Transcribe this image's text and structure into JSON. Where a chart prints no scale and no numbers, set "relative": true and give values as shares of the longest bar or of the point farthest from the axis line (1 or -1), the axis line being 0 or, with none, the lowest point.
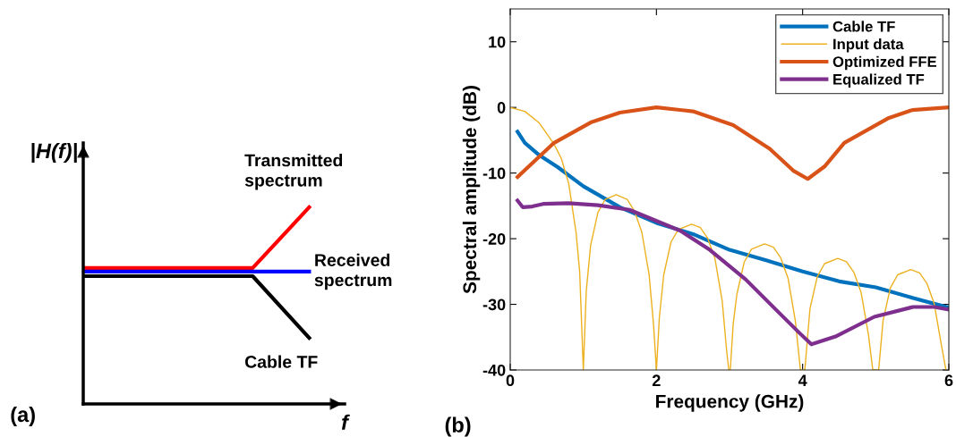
{
  "chart_data": [
    {
      "type": "line",
      "relative": true,
      "xlabel": "f",
      "ylabel": "|H(f)|",
      "annotations": [
        "(a)"
      ],
      "grid": false,
      "legend": false,
      "categories": [
        null,
        null,
        null,
        null,
        null
      ],
      "series": [
        {
          "name": "Transmitted spectrum",
          "color": "#ff0000",
          "values": [
            0.691,
            0.691,
            0.691,
            0.691,
            1.0
          ]
        },
        {
          "name": "Received spectrum",
          "color": "#0000ff",
          "values": [
            0.673,
            0.673,
            0.673,
            0.673,
            0.673
          ]
        },
        {
          "name": "Cable TF",
          "color": "#000000",
          "values": [
            0.65,
            0.65,
            0.65,
            0.65,
            0.336
          ]
        }
      ]
    },
    {
      "type": "line",
      "xlabel": "Frequency (GHz)",
      "ylabel": "Spectral amplitude (dB)",
      "annotations": [
        "(b)"
      ],
      "grid": false,
      "legend": "top right",
      "xlim": [
        0,
        6
      ],
      "xticks": [
        0,
        2,
        4,
        6
      ],
      "ylim": [
        -40,
        15
      ],
      "yticks": [
        -40,
        -30,
        -20,
        -10,
        0,
        10
      ],
      "series": [
        {
          "name": "Cable TF",
          "color": "#0072bd",
          "x": [
            0.1,
            0.2,
            0.4,
            0.65,
            1.0,
            1.5,
            2.0,
            2.5,
            3.0,
            3.5,
            4.0,
            4.5,
            5.0,
            5.5,
            6.0
          ],
          "values": [
            -3.7,
            -5.4,
            -7.3,
            -9.1,
            -12.0,
            -15.2,
            -17.6,
            -19.3,
            -21.7,
            -23.3,
            -25.0,
            -26.5,
            -27.4,
            -29.0,
            -30.5
          ]
        },
        {
          "name": "Input data",
          "color": "#edb120",
          "x": [
            0.0,
            0.2,
            0.4,
            0.6,
            0.7,
            0.8,
            0.9,
            0.95,
            1.0,
            1.04,
            1.1,
            1.2,
            1.3,
            1.45,
            1.6,
            1.7,
            1.8,
            1.9,
            1.96,
            2.0,
            2.04,
            2.1,
            2.2,
            2.3,
            2.48,
            2.6,
            2.7,
            2.8,
            2.9,
            2.96,
            2.99,
            3.01,
            3.05,
            3.1,
            3.2,
            3.3,
            3.48,
            3.6,
            3.7,
            3.8,
            3.9,
            3.97,
            4.03,
            4.1,
            4.2,
            4.3,
            4.48,
            4.6,
            4.7,
            4.8,
            4.9,
            4.96,
            5.04,
            5.1,
            5.2,
            5.3,
            5.48,
            5.6,
            5.7,
            5.8,
            5.9,
            5.96
          ],
          "values": [
            0.0,
            -0.6,
            -2.4,
            -5.6,
            -7.8,
            -11.6,
            -19.0,
            -25.0,
            -40.0,
            -28.0,
            -21.0,
            -16.0,
            -14.0,
            -13.3,
            -14.0,
            -15.8,
            -19.0,
            -25.5,
            -33.0,
            -40.0,
            -32.0,
            -25.5,
            -20.5,
            -18.6,
            -17.8,
            -18.3,
            -19.9,
            -23.0,
            -29.5,
            -37.0,
            -40.0,
            -40.0,
            -33.0,
            -28.5,
            -23.6,
            -21.6,
            -20.8,
            -21.3,
            -22.9,
            -26.0,
            -32.5,
            -40.0,
            -40.0,
            -30.7,
            -25.8,
            -23.8,
            -23.0,
            -23.5,
            -25.1,
            -28.2,
            -34.6,
            -40.0,
            -40.0,
            -32.5,
            -27.5,
            -25.5,
            -24.7,
            -25.2,
            -26.8,
            -29.9,
            -36.3,
            -40.0
          ]
        },
        {
          "name": "Optimized FFE",
          "color": "#d95319",
          "x": [
            0.1,
            0.6,
            1.1,
            1.5,
            2.0,
            2.5,
            3.05,
            3.55,
            3.88,
            4.07,
            4.3,
            4.57,
            5.18,
            5.5,
            6.0
          ],
          "values": [
            -10.6,
            -5.4,
            -2.3,
            -0.8,
            0.0,
            -0.6,
            -2.7,
            -6.3,
            -9.7,
            -10.9,
            -9.0,
            -5.4,
            -1.6,
            -0.4,
            0.0
          ]
        },
        {
          "name": "Equalized TF",
          "color": "#7e2f8e",
          "x": [
            0.1,
            0.17,
            0.3,
            0.45,
            0.8,
            1.2,
            1.63,
            2.33,
            2.73,
            3.22,
            3.67,
            3.96,
            4.12,
            4.45,
            4.98,
            5.51,
            5.8,
            6.0
          ],
          "values": [
            -14.2,
            -15.2,
            -15.1,
            -14.7,
            -14.6,
            -14.9,
            -15.6,
            -18.8,
            -21.7,
            -26.2,
            -31.2,
            -34.4,
            -36.1,
            -34.9,
            -31.9,
            -30.4,
            -30.4,
            -30.8
          ]
        }
      ]
    }
  ]
}
